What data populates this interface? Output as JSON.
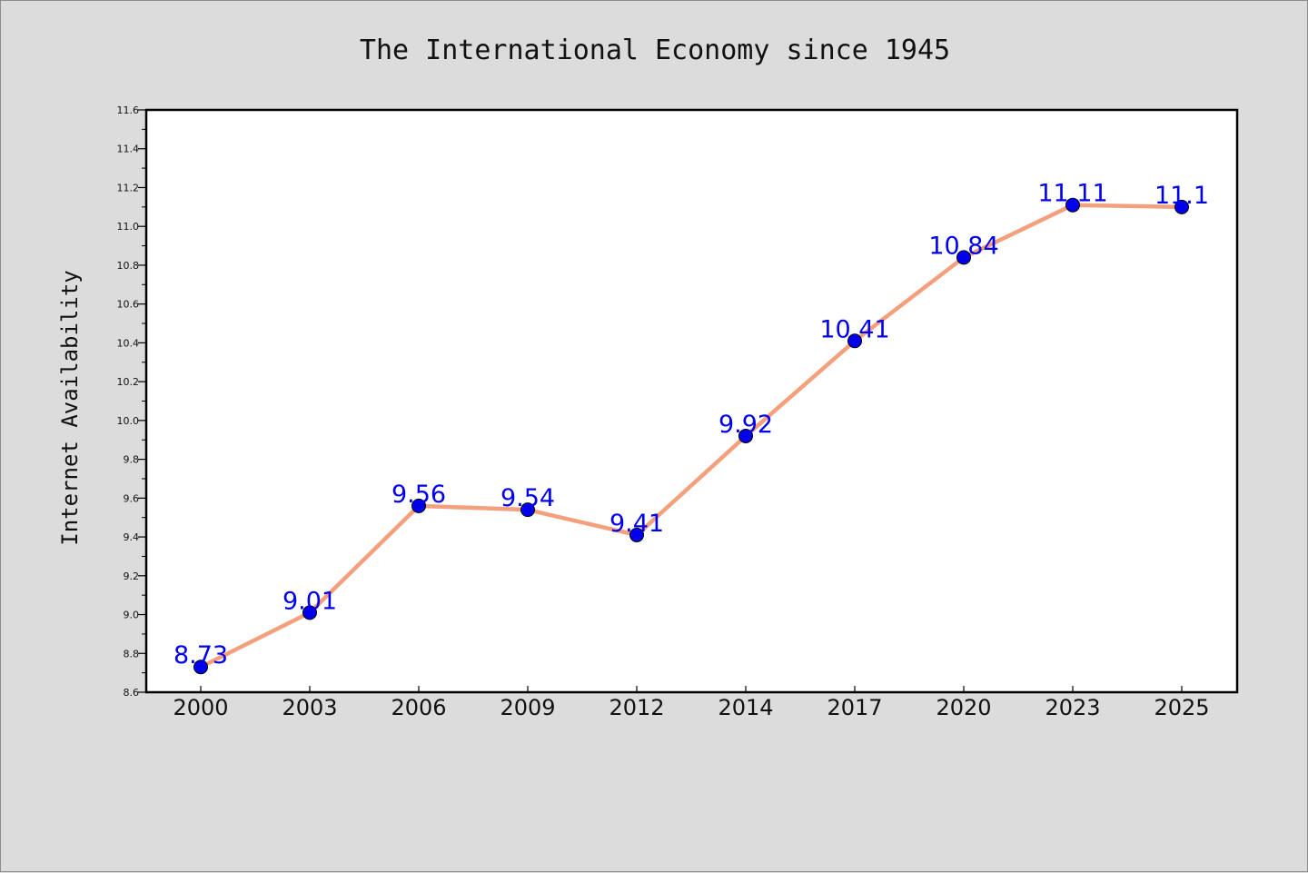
{
  "chart_data": {
    "type": "line",
    "title": "The International Economy since 1945",
    "xlabel": "",
    "ylabel": "Internet Availability",
    "categories": [
      "2000",
      "2003",
      "2006",
      "2009",
      "2012",
      "2014",
      "2017",
      "2020",
      "2023",
      "2025"
    ],
    "series": [
      {
        "values": [
          8.73,
          9.01,
          9.56,
          9.54,
          9.41,
          9.92,
          10.41,
          10.84,
          11.11,
          11.1
        ],
        "labels": [
          "8.73",
          "9.01",
          "9.56",
          "9.54",
          "9.41",
          "9.92",
          "10.41",
          "10.84",
          "11.11",
          "11.1"
        ],
        "line_color": "#f4a07c",
        "marker_color": "#0000ee",
        "label_color": "#0000ee"
      }
    ],
    "ylim": [
      8.6,
      11.6
    ],
    "yticks": [
      "8.6",
      "8.8",
      "9.0",
      "9.2",
      "9.4",
      "9.6",
      "9.8",
      "10.0",
      "10.2",
      "10.4",
      "10.6",
      "10.8",
      "11.0",
      "11.2",
      "11.4",
      "11.6"
    ],
    "grid": false,
    "legend": "none",
    "background_color": "#dcdcdc",
    "plot_background": "#ffffff"
  }
}
